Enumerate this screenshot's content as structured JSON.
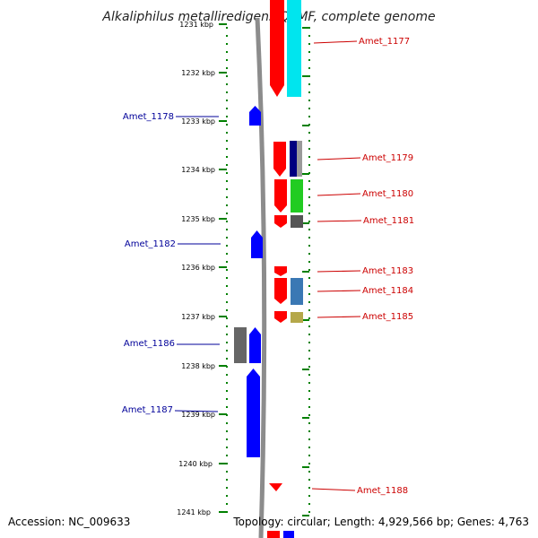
{
  "title": "Alkaliphilus metalliredigens QYMF, complete genome",
  "footer": {
    "accession": "Accession: NC_009633",
    "summary": "Topology: circular; Length: 4,929,566 bp; Genes: 4,763"
  },
  "colors": {
    "forward": "#ff0000",
    "reverse": "#0000ff",
    "forward_label": "#cc0000",
    "reverse_label": "#000099",
    "tick": "#008000",
    "backbone": "#888888"
  },
  "axis": {
    "unit": "kbp",
    "ticks": [
      "1231 kbp",
      "1232 kbp",
      "1233 kbp",
      "1234 kbp",
      "1235 kbp",
      "1236 kbp",
      "1237 kbp",
      "1238 kbp",
      "1239 kbp",
      "1240 kbp",
      "1241 kbp"
    ]
  },
  "genes_forward": [
    {
      "label": "Amet_1177",
      "cog_color": "#00e5ee"
    },
    {
      "label": "Amet_1179",
      "cog_color": "#000080"
    },
    {
      "label": "Amet_1180",
      "cog_color": "#22cc22"
    },
    {
      "label": "Amet_1181",
      "cog_color": "#555555"
    },
    {
      "label": "Amet_1183",
      "cog_color": ""
    },
    {
      "label": "Amet_1184",
      "cog_color": "#3a78b4"
    },
    {
      "label": "Amet_1185",
      "cog_color": "#b5a84a"
    },
    {
      "label": "Amet_1188",
      "cog_color": ""
    }
  ],
  "genes_reverse": [
    {
      "label": "Amet_1178",
      "cog_color": ""
    },
    {
      "label": "Amet_1182",
      "cog_color": ""
    },
    {
      "label": "Amet_1186",
      "cog_color": "#666666"
    },
    {
      "label": "Amet_1187",
      "cog_color": ""
    }
  ]
}
